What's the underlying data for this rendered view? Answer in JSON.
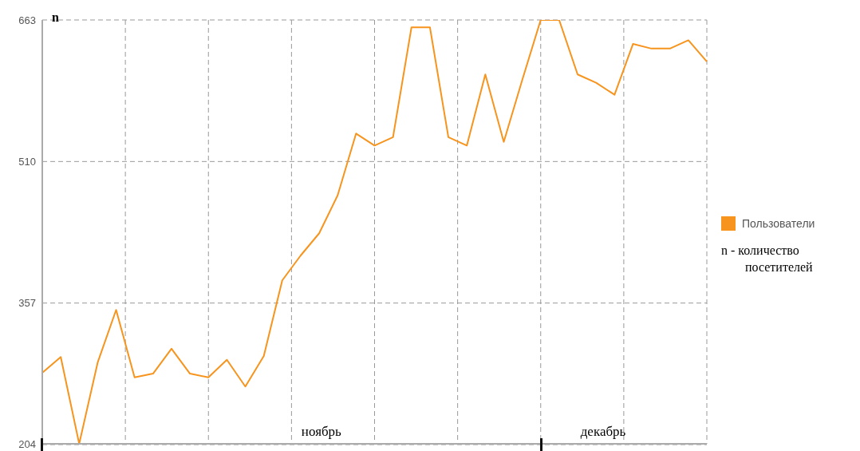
{
  "chart_data": {
    "type": "line",
    "ylabel": "n",
    "categories": [
      null,
      null,
      null,
      null,
      null,
      null,
      null,
      null,
      null,
      null,
      null,
      null,
      null,
      null,
      null,
      null,
      null,
      null,
      null,
      null,
      null,
      null,
      null,
      null,
      null,
      null,
      null,
      null,
      null,
      null,
      null,
      null,
      null,
      null,
      null,
      null,
      null
    ],
    "series": [
      {
        "name": "Пользователи",
        "color": "#f7941d",
        "values": [
          281,
          298,
          204,
          292,
          349,
          276,
          280,
          307,
          280,
          276,
          295,
          266,
          299,
          381,
          408,
          432,
          473,
          540,
          527,
          536,
          655,
          655,
          536,
          527,
          604,
          531,
          598,
          663,
          663,
          604,
          595,
          582,
          637,
          632,
          632,
          641,
          618
        ]
      }
    ],
    "ylim": [
      204,
      663
    ],
    "yticks": [
      204,
      357,
      510,
      663
    ],
    "grid": true,
    "legend": "right",
    "marker": "none",
    "line_style": "solid",
    "annotations": [
      "ноябрь",
      "декабрь",
      "n - количество посетителей"
    ]
  }
}
